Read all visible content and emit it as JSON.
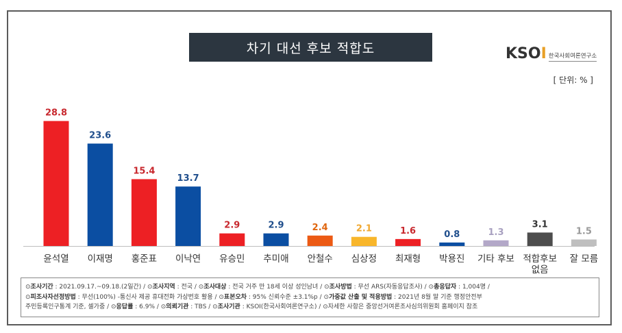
{
  "header": {
    "title": "차기 대선 후보 적합도",
    "unit": "[ 단위: % ]",
    "logo_mark": "KSOI",
    "logo_text": "한국사회여론연구소"
  },
  "chart_data": {
    "type": "bar",
    "title": "차기 대선 후보 적합도",
    "categories": [
      "윤석열",
      "이재명",
      "홍준표",
      "이낙연",
      "유승민",
      "추미애",
      "안철수",
      "심상정",
      "최재형",
      "박용진",
      "기타 후보",
      "적합후보\n없음",
      "잘 모름"
    ],
    "values": [
      28.8,
      23.6,
      15.4,
      13.7,
      2.9,
      2.9,
      2.4,
      2.1,
      1.6,
      0.8,
      1.3,
      3.1,
      1.5
    ],
    "value_labels": [
      "28.8",
      "23.6",
      "15.4",
      "13.7",
      "2.9",
      "2.9",
      "2.4",
      "2.1",
      "1.6",
      "0.8",
      "1.3",
      "3.1",
      "1.5"
    ],
    "colors": [
      "#ed2024",
      "#0b4ea2",
      "#ed2024",
      "#0b4ea2",
      "#ed2024",
      "#0b4ea2",
      "#ec5a14",
      "#f8b62b",
      "#ed2024",
      "#0b4ea2",
      "#b3a8c8",
      "#4d4d4d",
      "#bfbfbf"
    ],
    "label_colors": [
      "#c8282e",
      "#1f4e8c",
      "#c8282e",
      "#1f4e8c",
      "#c8282e",
      "#1f4e8c",
      "#e0660f",
      "#f0a830",
      "#c8282e",
      "#1f4e8c",
      "#a8a0c0",
      "#333333",
      "#999999"
    ],
    "ylim": [
      0,
      30
    ],
    "xlabel": "",
    "ylabel": "",
    "grid": false,
    "legend": "none"
  },
  "notes": {
    "line1": [
      {
        "k": "조사기간",
        "v": " : 2021.09.17.~09.18.(2일간)  /  "
      },
      {
        "k": "조사지역",
        "v": " : 전국  /  "
      },
      {
        "k": "조사대상",
        "v": " : 전국 거주 만 18세 이상 성인남녀  /  "
      },
      {
        "k": "조사방법",
        "v": " : 무선 ARS(자동응답조사)  /  "
      },
      {
        "k": "총응답자",
        "v": " : 1,004명  /"
      }
    ],
    "line2": [
      {
        "k": "피조사자선정방법",
        "v": " : 무선(100%) -통신사 제공 휴대전화 가상번호 활용  /  "
      },
      {
        "k": "표본오차",
        "v": " : 95% 신뢰수준 ±3.1%p  /  "
      },
      {
        "k": "가중값 산출 및 적용방법",
        "v": " : 2021년 8월 말 기준 행정안전부"
      }
    ],
    "line3": [
      {
        "k": "",
        "v": "주민등록인구통계 기준, 셀가중  /  "
      },
      {
        "k": "응답률",
        "v": " : 6.9%  /  "
      },
      {
        "k": "의뢰기관",
        "v": " : TBS  /  "
      },
      {
        "k": "조사기관",
        "v": " : KSOI(한국사회여론연구소)  /  "
      },
      {
        "k": "",
        "v": "자세한 사항은 중앙선거여론조사심의위원회 홈페이지 참조",
        "circle": true
      }
    ]
  }
}
